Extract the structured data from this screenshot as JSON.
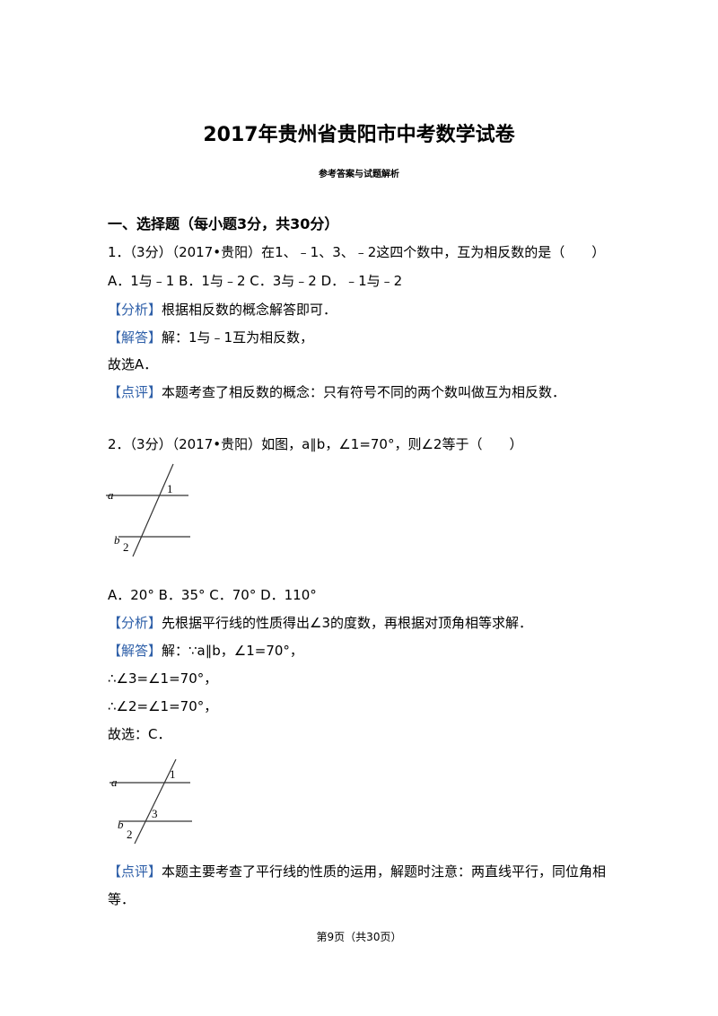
{
  "title": "2017年贵州省贵阳市中考数学试卷",
  "subtitle": "参考答案与试题解析",
  "section": "一、选择题（每小题3分，共30分）",
  "questions": [
    {
      "stem": "1．（3分）（2017•贵阳）在1、﹣1、3、﹣2这四个数中，互为相反数的是（　　）",
      "options": "A．1与﹣1 B．1与﹣2 C．3与﹣2 D．﹣1与﹣2",
      "analysis": {
        "tag": "【分析】",
        "text": "根据相反数的概念解答即可．"
      },
      "answer": {
        "tag": "【解答】",
        "lines": [
          "解：1与﹣1互为相反数，",
          "故选A．"
        ]
      },
      "comment": {
        "tag": "【点评】",
        "text": "本题考查了相反数的概念：只有符号不同的两个数叫做互为相反数．"
      }
    },
    {
      "stem": "2．（3分）（2017•贵阳）如图，a∥b，∠1=70°，则∠2等于（　　）",
      "figure": {
        "labels": [
          "a",
          "1",
          "b",
          "2"
        ]
      },
      "options": "A．20°  B．35°  C．70°  D．110°",
      "analysis": {
        "tag": "【分析】",
        "text": "先根据平行线的性质得出∠3的度数，再根据对顶角相等求解．"
      },
      "answer": {
        "tag": "【解答】",
        "lines": [
          "解：∵a∥b，∠1=70°，",
          "∴∠3=∠1=70°，",
          "∴∠2=∠1=70°，",
          "故选：C．"
        ]
      },
      "answer_figure": {
        "labels": [
          "a",
          "1",
          "3",
          "b",
          "2"
        ]
      },
      "comment": {
        "tag": "【点评】",
        "text": "本题主要考查了平行线的性质的运用，解题时注意：两直线平行，同位角相等．"
      }
    }
  ],
  "footer": "第9页（共30页）"
}
